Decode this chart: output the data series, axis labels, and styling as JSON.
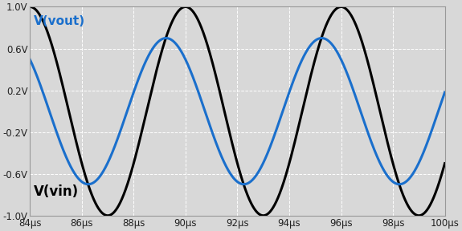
{
  "xmin": 8.4e-05,
  "xmax": 0.0001,
  "ymin": -1.0,
  "ymax": 1.0,
  "vin_amplitude": 1.0,
  "vout_amplitude": 0.7,
  "frequency": 166666.67,
  "vin_peak_time": 9e-05,
  "vout_phase_lead_deg": 45,
  "vin_color": "#000000",
  "vout_color": "#1a6fcc",
  "bg_color": "#d8d8d8",
  "grid_color": "#ffffff",
  "yticks": [
    -1.0,
    -0.6,
    -0.2,
    0.2,
    0.6,
    1.0
  ],
  "ytick_labels": [
    "-1.0V",
    "-0.6V",
    "-0.2V",
    "0.2V",
    "0.6V",
    "1.0V"
  ],
  "xticks": [
    8.4e-05,
    8.6e-05,
    8.8e-05,
    9e-05,
    9.2e-05,
    9.4e-05,
    9.6e-05,
    9.8e-05,
    0.0001
  ],
  "xtick_labels": [
    "84μs",
    "86μs",
    "88μs",
    "90μs",
    "92μs",
    "94μs",
    "96μs",
    "98μs",
    "100μs"
  ],
  "label_vout": "V(vout)",
  "label_vin": "V(vin)",
  "label_vout_color": "#1a6fcc",
  "label_vin_color": "#000000",
  "label_vout_fontsize": 11,
  "label_vin_fontsize": 12,
  "linewidth": 2.2,
  "tick_fontsize": 8.5
}
